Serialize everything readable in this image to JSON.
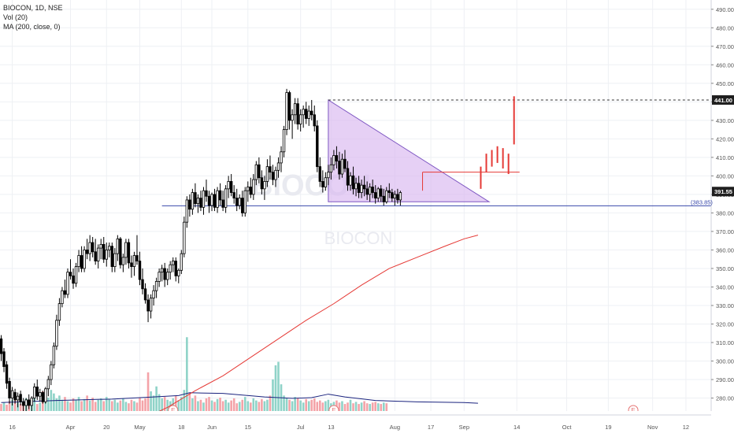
{
  "legend": {
    "symbol_line": "BIOCON, 1D, NSE",
    "vol_line": "Vol (20)",
    "ma_line": "MA (200, close, 0)"
  },
  "watermark": {
    "top_text": "BIOCON",
    "bottom_text": "BIOCON"
  },
  "colors": {
    "up": "#000000",
    "down": "#000000",
    "ma": "#e53935",
    "support": "#3949ab",
    "triangle_fill": "#d8b7f0",
    "triangle_stroke": "#7e57c2",
    "projection": "#e53935",
    "vol_up": "#8fd3c8",
    "vol_down": "#f4a3a8",
    "vol_ma": "#1a237e",
    "grid": "#eef0f4",
    "axis_text": "#555555"
  },
  "chart_data": {
    "type": "candlestick",
    "title": "BIOCON, 1D, NSE",
    "ylim": [
      273,
      495
    ],
    "y_ticks": [
      280,
      290,
      300,
      310,
      320,
      330,
      340,
      350,
      360,
      370,
      380,
      390,
      400,
      410,
      420,
      430,
      440,
      450,
      460,
      470,
      480,
      490
    ],
    "y_tick_suffix": ".00",
    "x_ticks": [
      {
        "label": "16",
        "bar": 4
      },
      {
        "label": "Apr",
        "bar": 25
      },
      {
        "label": "20",
        "bar": 38
      },
      {
        "label": "May",
        "bar": 50
      },
      {
        "label": "18",
        "bar": 65
      },
      {
        "label": "Jun",
        "bar": 76
      },
      {
        "label": "15",
        "bar": 89
      },
      {
        "label": "Jul",
        "bar": 108
      },
      {
        "label": "13",
        "bar": 119
      },
      {
        "label": "Aug",
        "bar": 142
      },
      {
        "label": "17",
        "bar": 155
      },
      {
        "label": "Sep",
        "bar": 167
      },
      {
        "label": "14",
        "bar": 186
      },
      {
        "label": "Oct",
        "bar": 204
      },
      {
        "label": "19",
        "bar": 219
      },
      {
        "label": "Nov",
        "bar": 235
      },
      {
        "label": "12",
        "bar": 247
      }
    ],
    "price_labels": [
      {
        "value": 441.0,
        "text": "441.00",
        "style": "dark"
      },
      {
        "value": 391.55,
        "text": "391.55",
        "style": "dark"
      },
      {
        "value": 383.85,
        "text": "(383.85)",
        "style": "blue"
      }
    ],
    "candles": [
      [
        312,
        314,
        300,
        304
      ],
      [
        305,
        307,
        294,
        297
      ],
      [
        298,
        300,
        285,
        288
      ],
      [
        289,
        291,
        277,
        280
      ],
      [
        280,
        286,
        276,
        284
      ],
      [
        283,
        285,
        277,
        279
      ],
      [
        279,
        283,
        275,
        281
      ],
      [
        282,
        284,
        276,
        278
      ],
      [
        278,
        280,
        273,
        276
      ],
      [
        276,
        280,
        272,
        279
      ],
      [
        279,
        282,
        274,
        276
      ],
      [
        276,
        281,
        271,
        280
      ],
      [
        280,
        288,
        278,
        286
      ],
      [
        286,
        290,
        279,
        281
      ],
      [
        281,
        285,
        278,
        283
      ],
      [
        283,
        284,
        277,
        278
      ],
      [
        278,
        286,
        277,
        285
      ],
      [
        285,
        292,
        281,
        290
      ],
      [
        290,
        300,
        287,
        298
      ],
      [
        298,
        310,
        296,
        308
      ],
      [
        308,
        325,
        306,
        322
      ],
      [
        322,
        334,
        319,
        331
      ],
      [
        331,
        340,
        329,
        338
      ],
      [
        338,
        344,
        334,
        336
      ],
      [
        336,
        350,
        334,
        348
      ],
      [
        348,
        355,
        344,
        346
      ],
      [
        346,
        350,
        339,
        342
      ],
      [
        342,
        353,
        340,
        351
      ],
      [
        351,
        360,
        348,
        357
      ],
      [
        357,
        362,
        348,
        350
      ],
      [
        350,
        362,
        348,
        360
      ],
      [
        360,
        366,
        355,
        358
      ],
      [
        358,
        368,
        354,
        364
      ],
      [
        364,
        367,
        356,
        359
      ],
      [
        359,
        366,
        352,
        354
      ],
      [
        354,
        363,
        350,
        361
      ],
      [
        361,
        366,
        355,
        363
      ],
      [
        363,
        367,
        353,
        355
      ],
      [
        355,
        364,
        351,
        360
      ],
      [
        360,
        364,
        356,
        362
      ],
      [
        362,
        364,
        348,
        351
      ],
      [
        351,
        361,
        348,
        358
      ],
      [
        358,
        368,
        354,
        366
      ],
      [
        366,
        367,
        350,
        352
      ],
      [
        352,
        358,
        348,
        356
      ],
      [
        356,
        366,
        352,
        364
      ],
      [
        364,
        366,
        350,
        353
      ],
      [
        353,
        357,
        345,
        351
      ],
      [
        351,
        359,
        346,
        357
      ],
      [
        357,
        368,
        352,
        354
      ],
      [
        354,
        359,
        341,
        344
      ],
      [
        344,
        350,
        336,
        339
      ],
      [
        339,
        342,
        331,
        333
      ],
      [
        333,
        336,
        321,
        327
      ],
      [
        327,
        336,
        323,
        334
      ],
      [
        334,
        341,
        330,
        338
      ],
      [
        338,
        345,
        334,
        343
      ],
      [
        343,
        350,
        340,
        348
      ],
      [
        348,
        352,
        343,
        350
      ],
      [
        350,
        353,
        340,
        344
      ],
      [
        344,
        350,
        341,
        348
      ],
      [
        348,
        354,
        344,
        352
      ],
      [
        352,
        356,
        348,
        354
      ],
      [
        354,
        356,
        343,
        346
      ],
      [
        346,
        350,
        342,
        349
      ],
      [
        349,
        360,
        347,
        358
      ],
      [
        358,
        378,
        356,
        375
      ],
      [
        375,
        389,
        372,
        387
      ],
      [
        387,
        390,
        378,
        382
      ],
      [
        382,
        393,
        379,
        391
      ],
      [
        391,
        396,
        383,
        385
      ],
      [
        385,
        390,
        380,
        388
      ],
      [
        388,
        392,
        381,
        383
      ],
      [
        383,
        394,
        379,
        392
      ],
      [
        392,
        398,
        386,
        389
      ],
      [
        389,
        392,
        380,
        384
      ],
      [
        384,
        391,
        381,
        390
      ],
      [
        390,
        393,
        381,
        383
      ],
      [
        383,
        394,
        380,
        392
      ],
      [
        392,
        396,
        384,
        387
      ],
      [
        387,
        392,
        381,
        383
      ],
      [
        383,
        395,
        380,
        393
      ],
      [
        393,
        400,
        388,
        397
      ],
      [
        397,
        401,
        389,
        391
      ],
      [
        391,
        395,
        385,
        388
      ],
      [
        388,
        393,
        381,
        384
      ],
      [
        384,
        390,
        382,
        388
      ],
      [
        388,
        392,
        378,
        380
      ],
      [
        380,
        394,
        378,
        392
      ],
      [
        392,
        397,
        386,
        394
      ],
      [
        394,
        399,
        388,
        390
      ],
      [
        390,
        401,
        387,
        398
      ],
      [
        398,
        408,
        395,
        406
      ],
      [
        406,
        410,
        396,
        399
      ],
      [
        399,
        403,
        390,
        393
      ],
      [
        393,
        400,
        387,
        397
      ],
      [
        397,
        409,
        394,
        405
      ],
      [
        405,
        411,
        398,
        402
      ],
      [
        402,
        406,
        395,
        398
      ],
      [
        398,
        405,
        394,
        403
      ],
      [
        403,
        410,
        399,
        407
      ],
      [
        407,
        416,
        402,
        413
      ],
      [
        413,
        427,
        410,
        425
      ],
      [
        425,
        447,
        422,
        445
      ],
      [
        445,
        446,
        425,
        430
      ],
      [
        430,
        436,
        420,
        433
      ],
      [
        433,
        442,
        428,
        439
      ],
      [
        439,
        442,
        425,
        428
      ],
      [
        428,
        436,
        424,
        433
      ],
      [
        433,
        438,
        426,
        436
      ],
      [
        436,
        440,
        428,
        431
      ],
      [
        431,
        438,
        427,
        435
      ],
      [
        435,
        441,
        430,
        433
      ],
      [
        433,
        438,
        424,
        427
      ],
      [
        427,
        430,
        402,
        405
      ],
      [
        405,
        410,
        394,
        397
      ],
      [
        397,
        403,
        391,
        394
      ],
      [
        394,
        402,
        392,
        399
      ],
      [
        399,
        406,
        395,
        402
      ],
      [
        402,
        410,
        398,
        406
      ],
      [
        406,
        414,
        403,
        411
      ],
      [
        411,
        416,
        404,
        408
      ],
      [
        408,
        413,
        398,
        401
      ],
      [
        401,
        412,
        399,
        409
      ],
      [
        409,
        414,
        402,
        404
      ],
      [
        404,
        408,
        392,
        395
      ],
      [
        395,
        402,
        392,
        400
      ],
      [
        400,
        405,
        390,
        393
      ],
      [
        393,
        399,
        389,
        396
      ],
      [
        396,
        400,
        388,
        391
      ],
      [
        391,
        398,
        388,
        395
      ],
      [
        395,
        400,
        389,
        393
      ],
      [
        393,
        397,
        387,
        390
      ],
      [
        390,
        396,
        386,
        394
      ],
      [
        394,
        398,
        388,
        391
      ],
      [
        391,
        395,
        385,
        388
      ],
      [
        388,
        394,
        386,
        393
      ],
      [
        393,
        395,
        386,
        389
      ],
      [
        389,
        393,
        384,
        386
      ],
      [
        386,
        394,
        385,
        392
      ],
      [
        392,
        396,
        388,
        391
      ],
      [
        391,
        393,
        386,
        388
      ],
      [
        388,
        392,
        384,
        390
      ],
      [
        390,
        393,
        385,
        387
      ],
      [
        387,
        392,
        384,
        391
      ]
    ],
    "volume": {
      "ylim": [
        0,
        140
      ],
      "values": [
        10,
        12,
        9,
        14,
        16,
        20,
        12,
        10,
        13,
        18,
        11,
        15,
        22,
        10,
        12,
        28,
        14,
        19,
        30,
        25,
        18,
        22,
        16,
        20,
        14,
        12,
        18,
        16,
        20,
        14,
        17,
        22,
        15,
        19,
        13,
        16,
        18,
        14,
        20,
        17,
        14,
        16,
        12,
        15,
        18,
        13,
        11,
        16,
        14,
        12,
        19,
        15,
        18,
        55,
        28,
        22,
        35,
        24,
        18,
        20,
        16,
        14,
        18,
        22,
        15,
        20,
        30,
        105,
        26,
        18,
        22,
        14,
        16,
        12,
        18,
        20,
        15,
        13,
        17,
        19,
        14,
        16,
        12,
        15,
        18,
        11,
        13,
        16,
        20,
        14,
        12,
        18,
        15,
        13,
        17,
        14,
        16,
        22,
        45,
        65,
        70,
        38,
        22,
        18,
        16,
        14,
        20,
        18,
        15,
        12,
        17,
        14,
        16,
        18,
        13,
        15,
        12,
        14,
        16,
        11,
        13,
        15,
        12,
        14,
        10,
        12,
        16,
        11,
        13,
        10,
        12,
        14,
        11,
        10,
        12,
        13,
        11,
        10,
        12,
        11
      ],
      "up_flags": [
        0,
        1,
        0,
        0,
        1,
        0,
        1,
        0,
        0,
        1,
        0,
        1,
        1,
        0,
        1,
        0,
        1,
        1,
        1,
        1,
        1,
        1,
        1,
        0,
        1,
        0,
        0,
        1,
        1,
        0,
        1,
        0,
        1,
        0,
        0,
        1,
        1,
        0,
        1,
        1,
        0,
        1,
        1,
        0,
        1,
        1,
        0,
        0,
        1,
        0,
        0,
        0,
        0,
        0,
        1,
        1,
        1,
        1,
        1,
        0,
        1,
        1,
        1,
        0,
        1,
        1,
        1,
        1,
        0,
        1,
        0,
        1,
        0,
        1,
        0,
        0,
        1,
        0,
        1,
        0,
        0,
        1,
        1,
        0,
        0,
        0,
        1,
        0,
        1,
        1,
        0,
        1,
        1,
        0,
        0,
        1,
        1,
        0,
        1,
        1,
        1,
        1,
        1,
        1,
        0,
        1,
        1,
        0,
        1,
        1,
        0,
        1,
        0,
        0,
        0,
        0,
        0,
        1,
        1,
        1,
        1,
        0,
        0,
        1,
        0,
        0,
        1,
        0,
        1,
        0,
        1,
        0,
        0,
        1,
        0,
        0,
        1,
        0,
        1,
        0,
        1,
        0,
        1,
        0,
        1,
        0,
        0,
        1,
        0,
        1
      ]
    },
    "moving_average": {
      "name": "MA (200, close, 0)",
      "points": [
        [
          53,
          270
        ],
        [
          60,
          275
        ],
        [
          70,
          284
        ],
        [
          80,
          292
        ],
        [
          90,
          302
        ],
        [
          100,
          312
        ],
        [
          110,
          322
        ],
        [
          120,
          331
        ],
        [
          130,
          341
        ],
        [
          140,
          350
        ],
        [
          150,
          356
        ],
        [
          160,
          362
        ],
        [
          167,
          366
        ],
        [
          172,
          368
        ]
      ]
    },
    "volume_ma": {
      "points": [
        [
          0,
          12
        ],
        [
          20,
          15
        ],
        [
          40,
          17
        ],
        [
          55,
          20
        ],
        [
          64,
          22
        ],
        [
          68,
          26
        ],
        [
          80,
          25
        ],
        [
          95,
          20
        ],
        [
          105,
          18
        ],
        [
          112,
          19
        ],
        [
          118,
          24
        ],
        [
          124,
          20
        ],
        [
          135,
          15
        ],
        [
          150,
          13
        ],
        [
          167,
          12
        ],
        [
          172,
          11
        ]
      ]
    },
    "support_line": {
      "value": 383.85,
      "x_from": 58,
      "x_to": 258
    },
    "resistance_dashed": {
      "value": 441.0,
      "x_from": 118,
      "x_to": 258
    },
    "triangle": [
      [
        118,
        441
      ],
      [
        176,
        386
      ],
      [
        118,
        386
      ]
    ],
    "breakout_box": [
      [
        152,
        392
      ],
      [
        187,
        402
      ]
    ],
    "projection_bars": [
      {
        "bar": 173,
        "low": 393,
        "high": 405
      },
      {
        "bar": 175,
        "low": 402,
        "high": 412
      },
      {
        "bar": 177,
        "low": 405,
        "high": 414
      },
      {
        "bar": 179,
        "low": 407,
        "high": 416
      },
      {
        "bar": 181,
        "low": 404,
        "high": 415
      },
      {
        "bar": 183,
        "low": 401,
        "high": 412
      },
      {
        "bar": 185,
        "low": 417,
        "high": 443
      }
    ],
    "earnings_markers": [
      {
        "label": "E",
        "bar": 62
      },
      {
        "label": "E",
        "bar": 120
      },
      {
        "label": "E",
        "bar": 228
      }
    ]
  }
}
